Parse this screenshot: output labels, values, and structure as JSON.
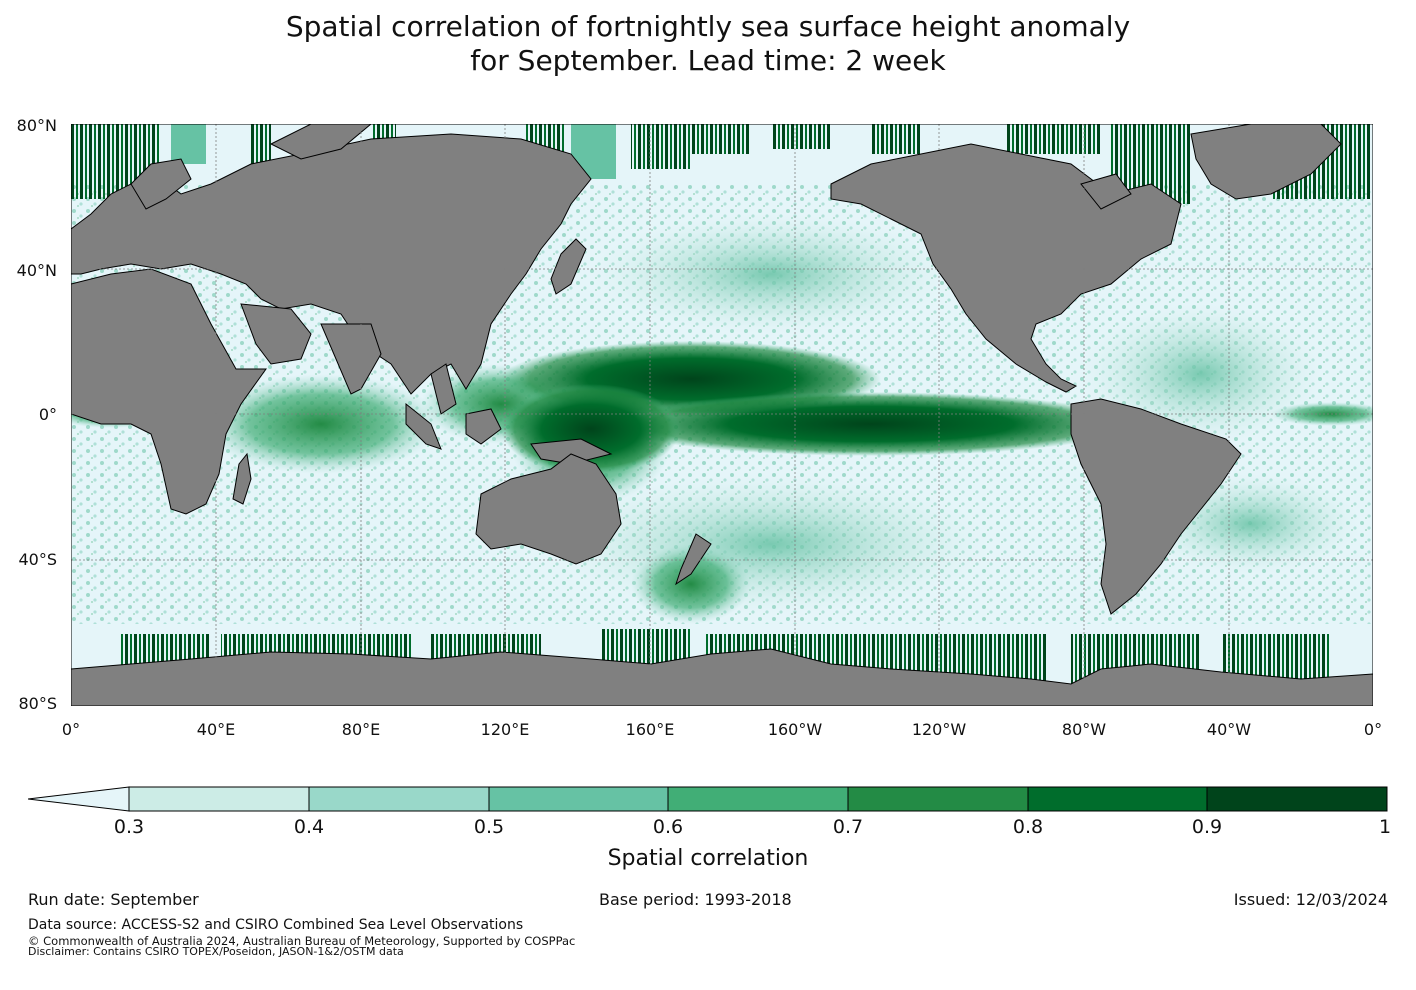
{
  "title_line1": "Spatial correlation of fortnightly sea surface height anomaly",
  "title_line2": "for September. Lead time: 2 week",
  "lat_ticks": [
    "80°N",
    "40°N",
    "0°",
    "40°S",
    "80°S"
  ],
  "lon_ticks": [
    "0°",
    "40°E",
    "80°E",
    "120°E",
    "160°E",
    "160°W",
    "120°W",
    "80°W",
    "40°W",
    "0°"
  ],
  "colorbar": {
    "label": "Spatial correlation",
    "ticks": [
      "0.3",
      "0.4",
      "0.5",
      "0.6",
      "0.7",
      "0.8",
      "0.9",
      "1"
    ],
    "colors": [
      "#e5f5f9",
      "#ccece6",
      "#99d8c9",
      "#66c2a4",
      "#41ae76",
      "#238b45",
      "#006d2c",
      "#00441b"
    ]
  },
  "colors": {
    "land": "#808080",
    "ocean_low": "#e5f5f9",
    "grid": "#7f7f7f"
  },
  "footer": {
    "run_date": "Run date: September",
    "base_period": "Base period: 1993-2018",
    "issued": "Issued: 12/03/2024",
    "source": "Data source: ACCESS-S2 and CSIRO Combined Sea Level Observations",
    "copyright": "© Commonwealth of Australia 2024, Australian Bureau of Meteorology, Supported by COSPPac",
    "disclaimer": "Disclaimer: Contains CSIRO TOPEX/Poseidon, JASON-1&2/OSTM data"
  }
}
